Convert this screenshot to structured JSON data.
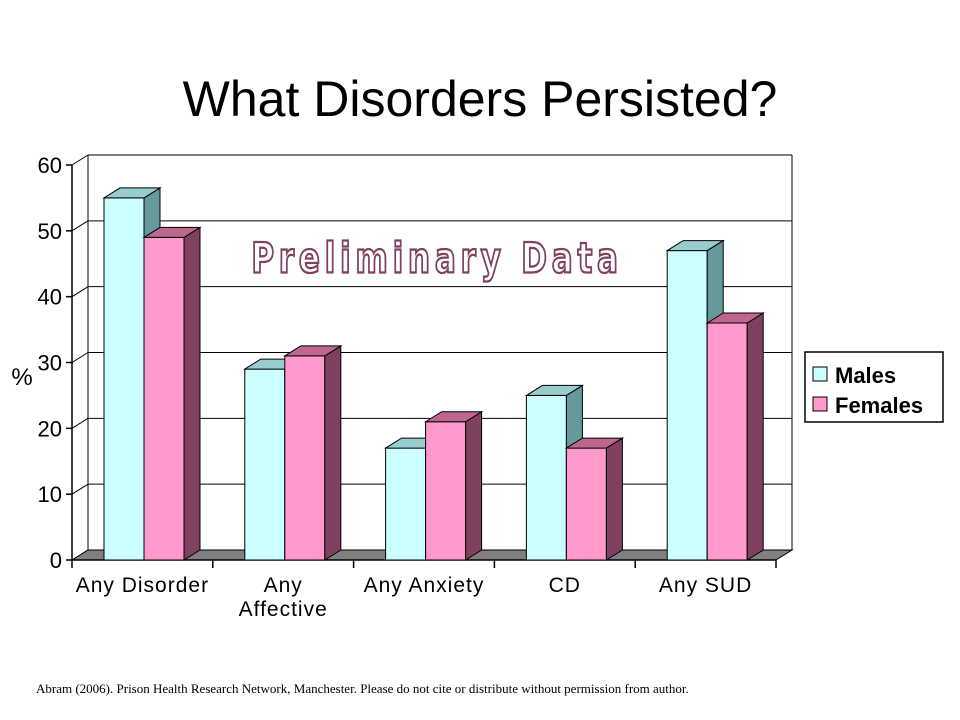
{
  "slide": {
    "title": "What Disorders Persisted?",
    "footer": "Abram (2006).  Prison Health Research Network, Manchester.  Please do not cite or distribute without permission  from author."
  },
  "chart_data": {
    "type": "bar",
    "style": "3d-clustered-column",
    "categories": [
      "Any Disorder",
      "Any Affective",
      "Any Anxiety",
      "CD",
      "Any SUD"
    ],
    "category_labels": [
      [
        "Any Disorder"
      ],
      [
        "Any",
        "Affective"
      ],
      [
        "Any Anxiety"
      ],
      [
        "CD"
      ],
      [
        "Any SUD"
      ]
    ],
    "series": [
      {
        "name": "Males",
        "values": [
          55,
          29,
          17,
          25,
          47
        ]
      },
      {
        "name": "Females",
        "values": [
          49,
          31,
          21,
          17,
          36
        ]
      }
    ],
    "ylabel": "%",
    "ylim": [
      0,
      60
    ],
    "yticks": [
      0,
      10,
      20,
      30,
      40,
      50,
      60
    ],
    "grid": true,
    "legend": "right",
    "annotation": "Preliminary Data",
    "colors": {
      "Males": {
        "front": "#ccffff",
        "side": "#669999",
        "top": "#99cccc"
      },
      "Females": {
        "front": "#ff99cc",
        "side": "#804060",
        "top": "#bf6690"
      },
      "floor": "#808080",
      "annotation_fill": "#ffffff",
      "annotation_stroke": "#804060"
    }
  }
}
